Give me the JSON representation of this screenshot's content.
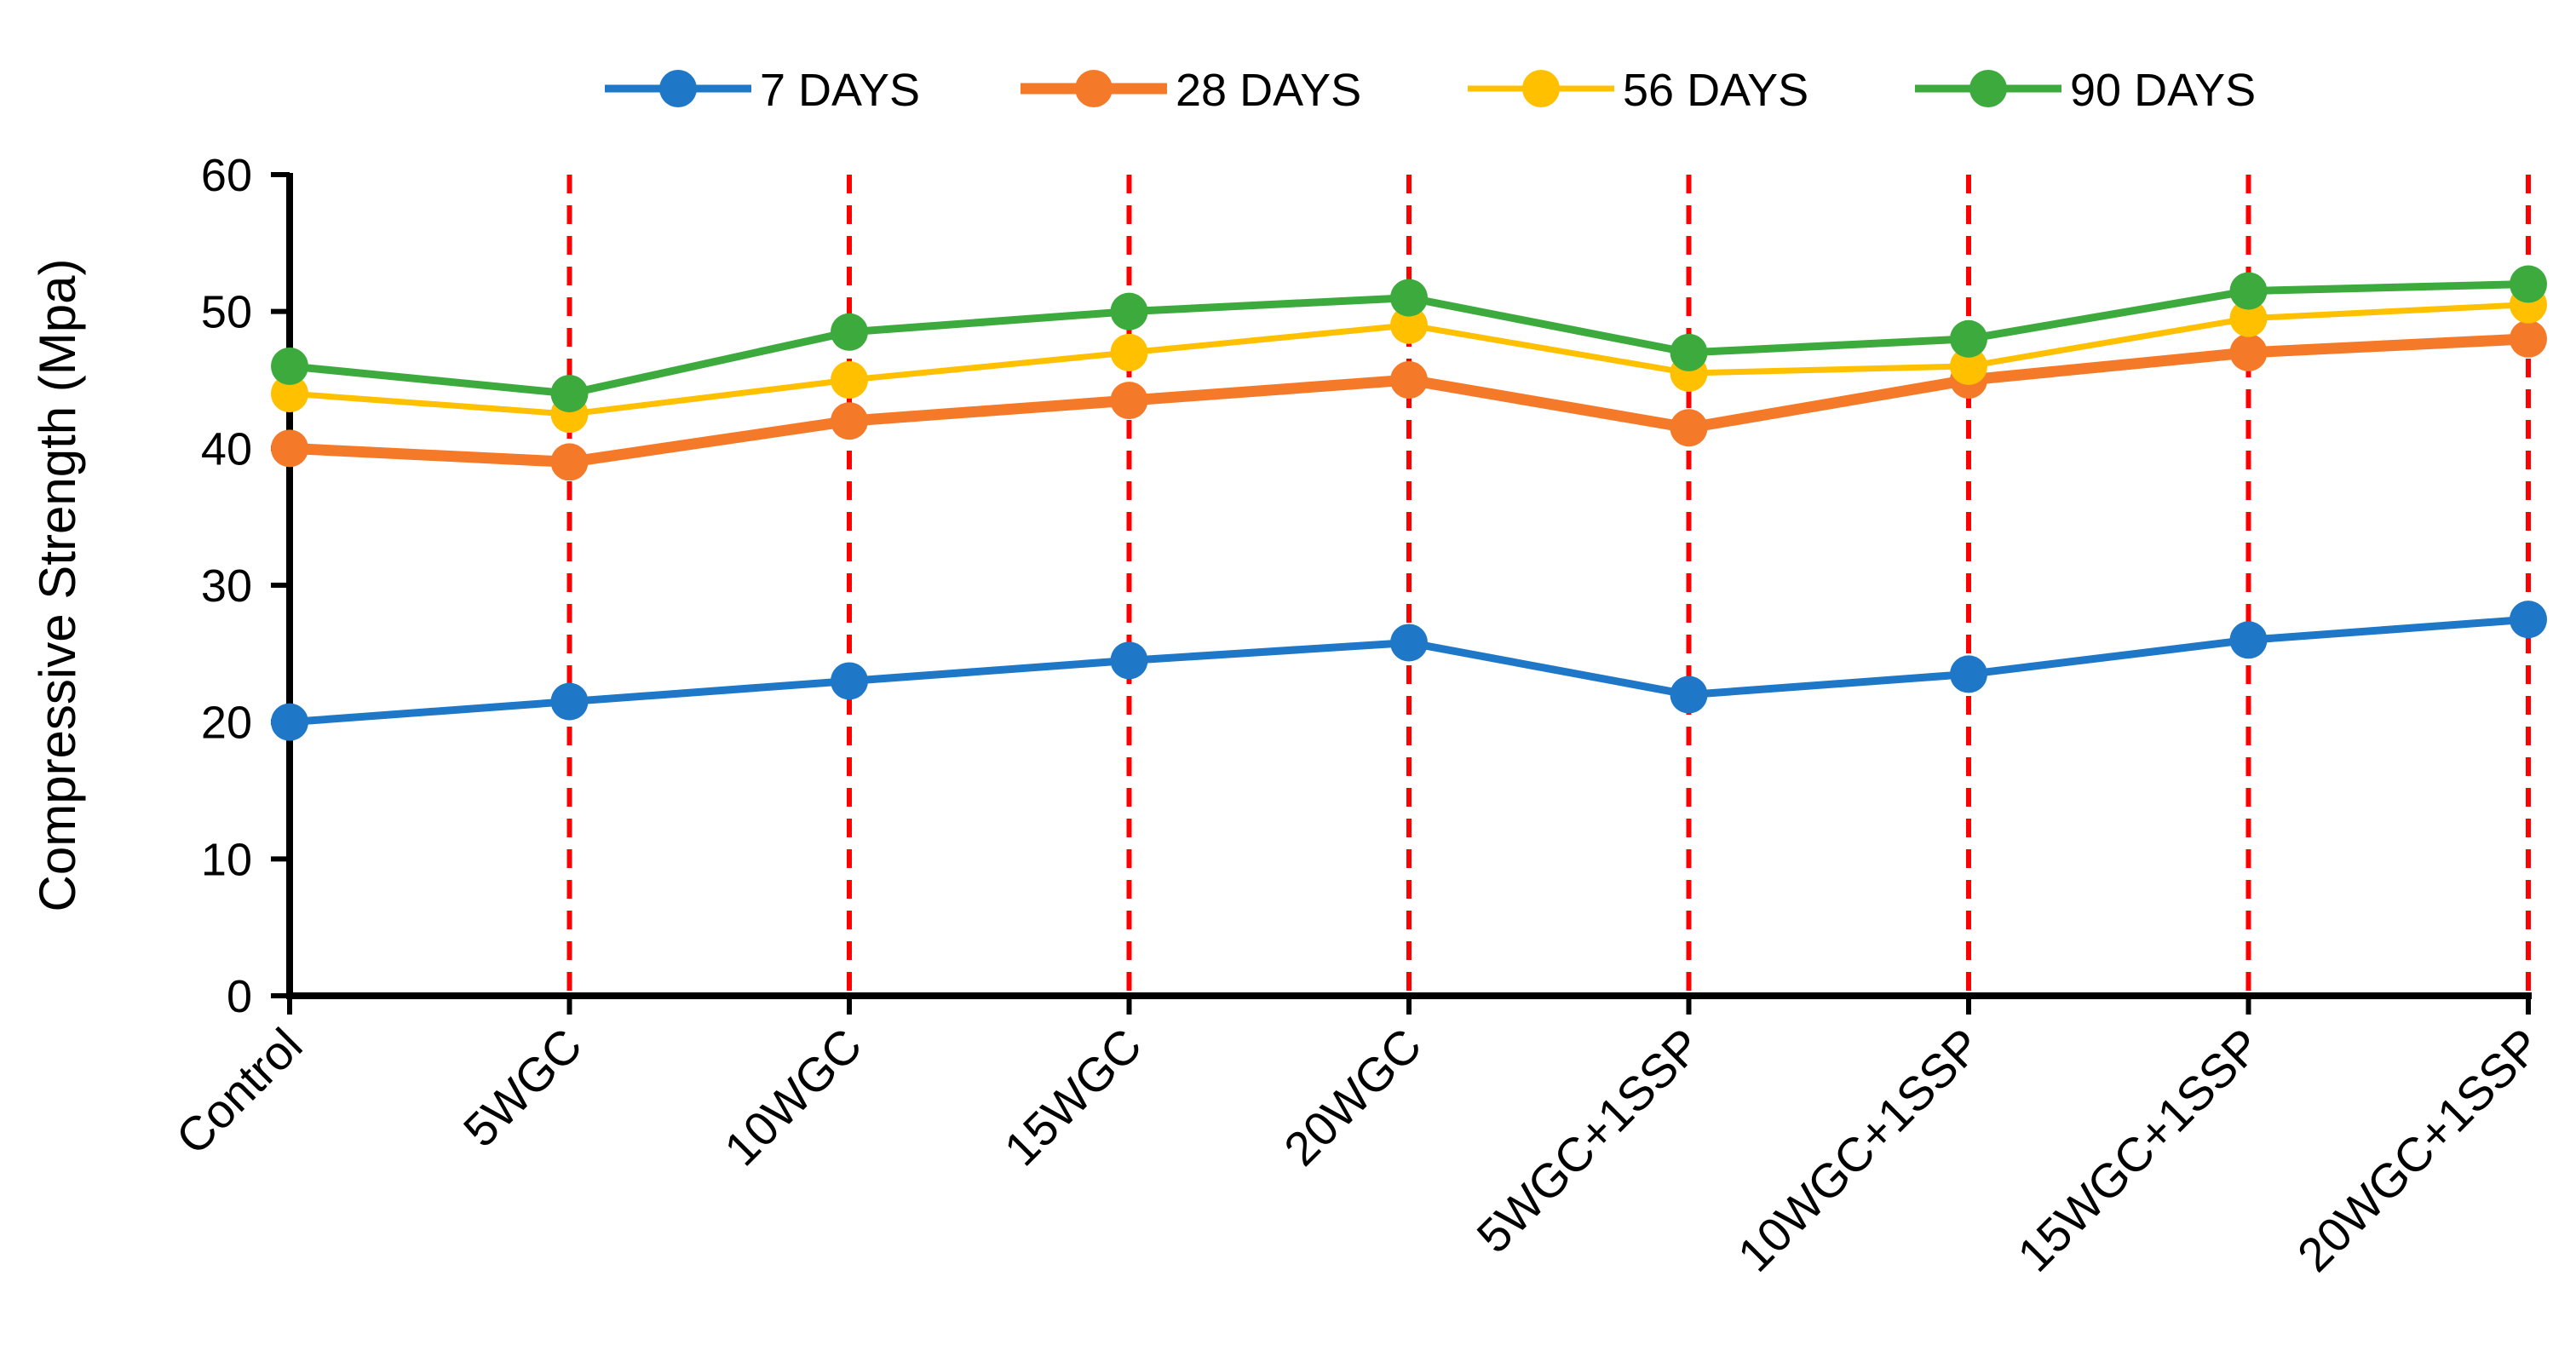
{
  "chart_data": {
    "type": "line",
    "title": "",
    "xlabel": "",
    "ylabel": "Compressive Strength (Mpa)",
    "ylim": [
      0,
      60
    ],
    "yticks": [
      0,
      10,
      20,
      30,
      40,
      50,
      60
    ],
    "categories": [
      "Control",
      "5WGC",
      "10WGC",
      "15WGC",
      "20WGC",
      "5WGC+1SSP",
      "10WGC+1SSP",
      "15WGC+1SSP",
      "20WGC+1SSP"
    ],
    "legend_position": "top",
    "grid": "dashed vertical red lines at each category",
    "series": [
      {
        "name": "7 DAYS",
        "color": "#1F77C8",
        "values": [
          20,
          21.5,
          23,
          24.5,
          25.8,
          22,
          23.5,
          26,
          27.5
        ]
      },
      {
        "name": "28 DAYS",
        "color": "#F47A2A",
        "values": [
          40,
          39,
          42,
          43.5,
          45,
          41.5,
          45,
          47,
          48
        ]
      },
      {
        "name": "56 DAYS",
        "color": "#FFC000",
        "values": [
          44,
          42.5,
          45,
          47,
          49,
          45.5,
          46,
          49.5,
          50.5
        ]
      },
      {
        "name": "90 DAYS",
        "color": "#3DAA3D",
        "values": [
          46,
          44,
          48.5,
          50,
          51,
          47,
          48,
          51.5,
          52
        ]
      }
    ],
    "colors": {
      "axis": "#000000",
      "gridline": "#FF0000"
    }
  }
}
